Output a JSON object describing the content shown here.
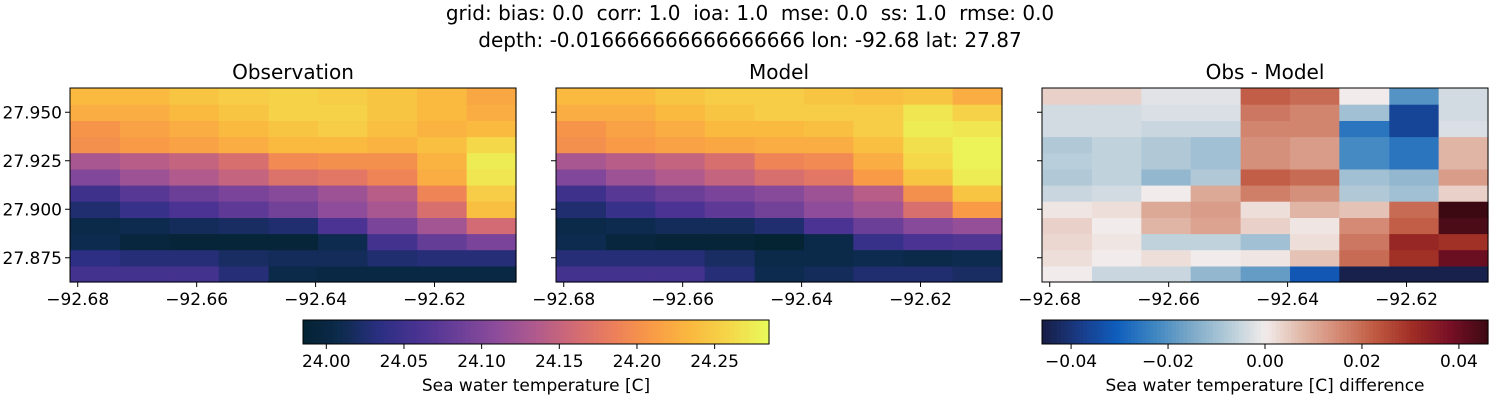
{
  "suptitle": {
    "line1": "grid: bias: 0.0  corr: 1.0  ioa: 1.0  mse: 0.0  ss: 1.0  rmse: 0.0",
    "line2": "depth: -0.016666666666666666 lon: -92.68 lat: 27.87"
  },
  "chart_data": [
    {
      "type": "heatmap",
      "title": "Observation",
      "xlabel": "",
      "ylabel": "",
      "colormap": "thermal",
      "x_ticks": [
        "−92.68",
        "−92.66",
        "−92.64",
        "−92.62"
      ],
      "x_tick_values": [
        -92.68,
        -92.66,
        -92.64,
        -92.62
      ],
      "y_ticks": [
        "27.875",
        "27.900",
        "27.925",
        "27.950"
      ],
      "y_tick_values": [
        27.875,
        27.9,
        27.925,
        27.95
      ],
      "x_edges": [
        -92.6813,
        -92.6729,
        -92.6646,
        -92.6563,
        -92.6479,
        -92.6396,
        -92.6313,
        -92.6229,
        -92.6146,
        -92.6063
      ],
      "y_edges": [
        27.8625,
        27.8708,
        27.8792,
        27.8875,
        27.8958,
        27.9042,
        27.9125,
        27.9208,
        27.9292,
        27.9375,
        27.9458,
        27.9542,
        27.9625
      ],
      "values": [
        [
          24.055,
          24.055,
          24.055,
          24.03,
          24.005,
          24.0,
          24.0,
          24.0,
          24.0
        ],
        [
          24.035,
          24.03,
          24.03,
          24.02,
          24.015,
          24.015,
          24.025,
          24.03,
          24.03
        ],
        [
          24.01,
          23.995,
          23.99,
          23.99,
          23.99,
          24.01,
          24.055,
          24.08,
          24.095
        ],
        [
          24.005,
          24.01,
          24.015,
          24.02,
          24.025,
          24.06,
          24.095,
          24.125,
          24.16
        ],
        [
          24.025,
          24.045,
          24.06,
          24.075,
          24.09,
          24.11,
          24.13,
          24.165,
          24.24
        ],
        [
          24.05,
          24.07,
          24.085,
          24.095,
          24.105,
          24.12,
          24.14,
          24.19,
          24.25
        ],
        [
          24.1,
          24.12,
          24.135,
          24.15,
          24.17,
          24.175,
          24.19,
          24.225,
          24.27
        ],
        [
          24.13,
          24.14,
          24.15,
          24.165,
          24.195,
          24.2,
          24.2,
          24.23,
          24.275
        ],
        [
          24.2,
          24.21,
          24.215,
          24.225,
          24.235,
          24.235,
          24.23,
          24.24,
          24.26
        ],
        [
          24.205,
          24.215,
          24.225,
          24.235,
          24.245,
          24.25,
          24.24,
          24.23,
          24.235
        ],
        [
          24.225,
          24.225,
          24.235,
          24.245,
          24.255,
          24.255,
          24.245,
          24.235,
          24.225
        ],
        [
          24.235,
          24.235,
          24.245,
          24.25,
          24.255,
          24.25,
          24.245,
          24.235,
          24.22
        ]
      ],
      "vmin": 23.985,
      "vmax": 24.285
    },
    {
      "type": "heatmap",
      "title": "Model",
      "xlabel": "",
      "ylabel": "",
      "colormap": "thermal",
      "x_ticks": [
        "−92.68",
        "−92.66",
        "−92.64",
        "−92.62"
      ],
      "x_tick_values": [
        -92.68,
        -92.66,
        -92.64,
        -92.62
      ],
      "y_ticks": [
        "",
        "",
        "",
        ""
      ],
      "y_tick_values": [
        27.875,
        27.9,
        27.925,
        27.95
      ],
      "x_edges": [
        -92.6813,
        -92.6729,
        -92.6646,
        -92.6563,
        -92.6479,
        -92.6396,
        -92.6313,
        -92.6229,
        -92.6146,
        -92.6063
      ],
      "y_edges": [
        27.8625,
        27.8708,
        27.8792,
        27.8875,
        27.8958,
        27.9042,
        27.9125,
        27.9208,
        27.9292,
        27.9375,
        27.9458,
        27.9542,
        27.9625
      ],
      "values": [
        [
          24.055,
          24.055,
          24.055,
          24.03,
          24.01,
          24.015,
          24.025,
          24.025,
          24.02
        ],
        [
          24.03,
          24.03,
          24.03,
          24.02,
          24.005,
          24.005,
          24.01,
          24.005,
          24.01
        ],
        [
          24.01,
          23.995,
          23.99,
          23.99,
          23.985,
          24.005,
          24.045,
          24.06,
          24.065
        ],
        [
          24.005,
          24.01,
          24.015,
          24.015,
          24.025,
          24.06,
          24.085,
          24.105,
          24.115
        ],
        [
          24.025,
          24.045,
          24.06,
          24.075,
          24.09,
          24.11,
          24.125,
          24.165,
          24.21
        ],
        [
          24.05,
          24.07,
          24.085,
          24.095,
          24.105,
          24.12,
          24.14,
          24.2,
          24.245
        ],
        [
          24.1,
          24.12,
          24.135,
          24.15,
          24.165,
          24.175,
          24.21,
          24.245,
          24.275
        ],
        [
          24.13,
          24.14,
          24.15,
          24.165,
          24.19,
          24.195,
          24.225,
          24.26,
          24.28
        ],
        [
          24.2,
          24.21,
          24.215,
          24.22,
          24.225,
          24.225,
          24.24,
          24.265,
          24.28
        ],
        [
          24.205,
          24.215,
          24.225,
          24.235,
          24.235,
          24.24,
          24.25,
          24.275,
          24.27
        ],
        [
          24.225,
          24.225,
          24.235,
          24.245,
          24.25,
          24.25,
          24.25,
          24.27,
          24.255
        ],
        [
          24.235,
          24.235,
          24.245,
          24.25,
          24.25,
          24.245,
          24.24,
          24.245,
          24.225
        ]
      ],
      "vmin": 23.985,
      "vmax": 24.285
    },
    {
      "type": "heatmap",
      "title": "Obs - Model",
      "xlabel": "",
      "ylabel": "",
      "colormap": "balance",
      "x_ticks": [
        "−92.68",
        "−92.66",
        "−92.64",
        "−92.62"
      ],
      "x_tick_values": [
        -92.68,
        -92.66,
        -92.64,
        -92.62
      ],
      "y_ticks": [
        "",
        "",
        "",
        ""
      ],
      "y_tick_values": [
        27.875,
        27.9,
        27.925,
        27.95
      ],
      "x_edges": [
        -92.6813,
        -92.6729,
        -92.6646,
        -92.6563,
        -92.6479,
        -92.6396,
        -92.6313,
        -92.6229,
        -92.6146,
        -92.6063
      ],
      "y_edges": [
        27.8625,
        27.8708,
        27.8792,
        27.8875,
        27.8958,
        27.9042,
        27.9125,
        27.9208,
        27.9292,
        27.9375,
        27.9458,
        27.9542,
        27.9625
      ],
      "values": [
        [
          0.0,
          -0.005,
          -0.005,
          -0.012,
          -0.018,
          -0.032,
          -0.045,
          -0.045,
          -0.045
        ],
        [
          0.002,
          0.0,
          0.002,
          0.0,
          0.001,
          0.006,
          0.02,
          0.03,
          0.04
        ],
        [
          0.003,
          0.001,
          -0.006,
          -0.006,
          -0.01,
          0.002,
          0.018,
          0.032,
          0.03
        ],
        [
          0.004,
          0.0,
          0.008,
          0.011,
          0.004,
          0.001,
          0.015,
          0.022,
          0.044
        ],
        [
          0.001,
          0.002,
          0.01,
          0.012,
          0.002,
          0.008,
          0.006,
          0.02,
          0.046
        ],
        [
          -0.005,
          -0.004,
          0.0,
          0.01,
          0.017,
          0.014,
          -0.008,
          -0.01,
          0.004
        ],
        [
          -0.008,
          -0.006,
          -0.012,
          -0.008,
          0.022,
          0.02,
          -0.01,
          -0.012,
          0.012
        ],
        [
          -0.007,
          -0.006,
          -0.008,
          -0.01,
          0.014,
          0.012,
          -0.022,
          -0.026,
          0.008
        ],
        [
          -0.008,
          -0.006,
          -0.008,
          -0.01,
          0.014,
          0.012,
          -0.022,
          -0.026,
          0.008
        ],
        [
          -0.004,
          -0.004,
          -0.005,
          -0.005,
          0.016,
          0.016,
          -0.026,
          -0.036,
          -0.003
        ],
        [
          -0.004,
          -0.004,
          -0.003,
          -0.003,
          0.018,
          0.016,
          -0.01,
          -0.036,
          -0.004
        ],
        [
          0.004,
          0.004,
          -0.002,
          -0.002,
          0.022,
          0.02,
          0.0,
          -0.02,
          -0.004
        ]
      ],
      "vmin": -0.046,
      "vmax": 0.046
    }
  ],
  "colorbars": [
    {
      "label": "Sea water temperature [C]",
      "colormap": "thermal",
      "vmin": 23.985,
      "vmax": 24.285,
      "ticks": [
        "24.00",
        "24.05",
        "24.10",
        "24.15",
        "24.20",
        "24.25"
      ],
      "tick_values": [
        24.0,
        24.05,
        24.1,
        24.15,
        24.2,
        24.25
      ]
    },
    {
      "label": "Sea water temperature [C] difference",
      "colormap": "balance",
      "vmin": -0.046,
      "vmax": 0.046,
      "ticks": [
        "−0.04",
        "−0.02",
        "0.00",
        "0.02",
        "0.04"
      ],
      "tick_values": [
        -0.04,
        -0.02,
        0.0,
        0.02,
        0.04
      ]
    }
  ]
}
